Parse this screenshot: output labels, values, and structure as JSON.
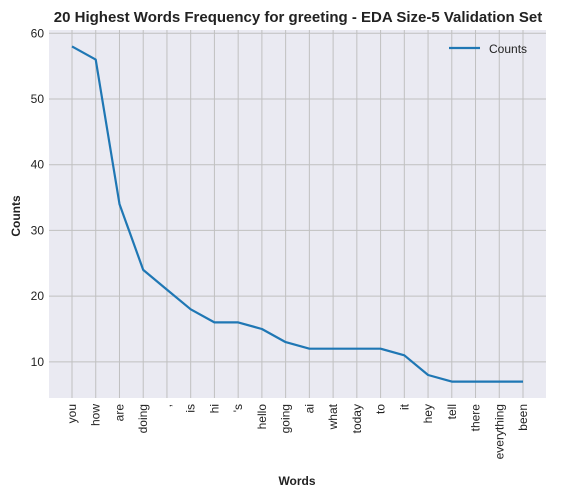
{
  "chart_data": {
    "type": "line",
    "title": "20 Highest Words Frequency for greeting - EDA Size-5 Validation Set",
    "xlabel": "Words",
    "ylabel": "Counts",
    "categories": [
      "you",
      "how",
      "are",
      "doing",
      ",",
      "is",
      "hi",
      "'s",
      "hello",
      "going",
      "ai",
      "what",
      "today",
      "to",
      "it",
      "hey",
      "tell",
      "there",
      "everything",
      "been"
    ],
    "series": [
      {
        "name": "Counts",
        "values": [
          58,
          56,
          34,
          24,
          21,
          18,
          16,
          16,
          15,
          13,
          12,
          12,
          12,
          12,
          11,
          8,
          7,
          7,
          7,
          7
        ]
      }
    ],
    "yticks": [
      10,
      20,
      30,
      40,
      50,
      60
    ],
    "ylim": [
      4.5,
      60.5
    ],
    "grid": true,
    "legend_position": "top-right",
    "colors": {
      "line": "#1f77b4",
      "plot_background": "#eaeaf2",
      "grid": "#c0c0c0"
    }
  }
}
